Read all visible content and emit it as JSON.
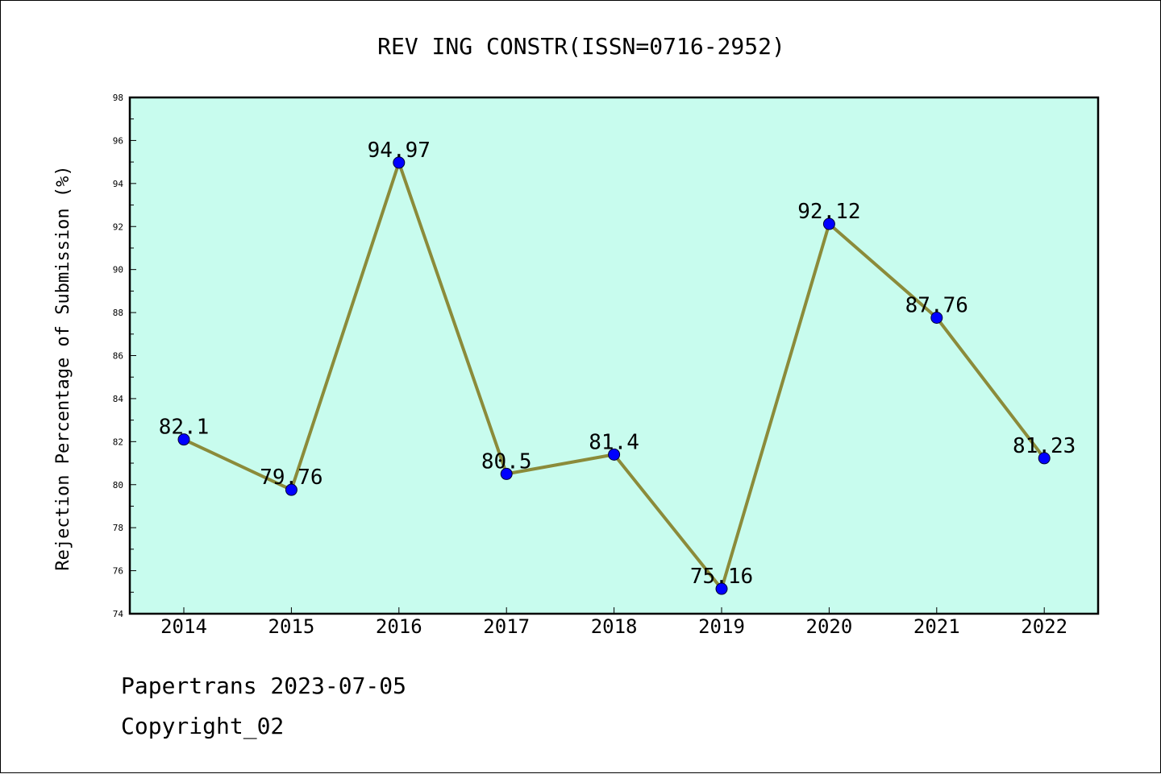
{
  "chart_data": {
    "type": "line",
    "title": "REV ING CONSTR(ISSN=0716-2952)",
    "xlabel": "",
    "ylabel": "Rejection Percentage of Submission (%)",
    "categories": [
      "2014",
      "2015",
      "2016",
      "2017",
      "2018",
      "2019",
      "2020",
      "2021",
      "2022"
    ],
    "values": [
      82.1,
      79.76,
      94.97,
      80.5,
      81.4,
      75.16,
      92.12,
      87.76,
      81.23
    ],
    "data_labels": [
      "82.1",
      "79.76",
      "94.97",
      "80.5",
      "81.4",
      "75.16",
      "92.12",
      "87.76",
      "81.23"
    ],
    "ylim": [
      74,
      98
    ],
    "yticks": [
      "74",
      "76",
      "78",
      "80",
      "82",
      "84",
      "86",
      "88",
      "90",
      "92",
      "94",
      "96",
      "98"
    ],
    "grid": false,
    "legend": "none",
    "colors": {
      "plot_background": "#c8fcee",
      "line": "#8b8b3a",
      "marker": "#0000ff"
    }
  },
  "footer": {
    "line1": "Papertrans 2023-07-05",
    "line2": "Copyright_02"
  }
}
